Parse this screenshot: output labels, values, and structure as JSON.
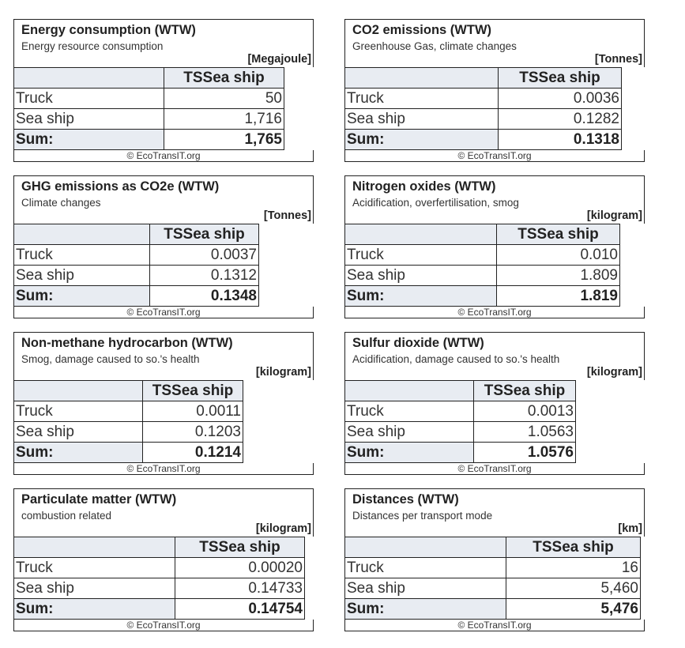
{
  "credit": "© EcoTransIT.org",
  "column_header": "TSSea ship",
  "panels": [
    {
      "title": "Energy consumption (WTW)",
      "subtitle": "Energy resource consumption",
      "unit": "[Megajoule]",
      "rows": [
        {
          "label": "Truck",
          "value": "50"
        },
        {
          "label": "Sea ship",
          "value": "1,716"
        }
      ],
      "sum": {
        "label": "Sum:",
        "value": "1,765"
      }
    },
    {
      "title": "CO2 emissions (WTW)",
      "subtitle": "Greenhouse Gas, climate changes",
      "unit": "[Tonnes]",
      "rows": [
        {
          "label": "Truck",
          "value": "0.0036"
        },
        {
          "label": "Sea ship",
          "value": "0.1282"
        }
      ],
      "sum": {
        "label": "Sum:",
        "value": "0.1318"
      }
    },
    {
      "title": "GHG emissions as CO2e (WTW)",
      "subtitle": "Climate changes",
      "unit": "[Tonnes]",
      "rows": [
        {
          "label": "Truck",
          "value": "0.0037"
        },
        {
          "label": "Sea ship",
          "value": "0.1312"
        }
      ],
      "sum": {
        "label": "Sum:",
        "value": "0.1348"
      }
    },
    {
      "title": "Nitrogen oxides (WTW)",
      "subtitle": "Acidification, overfertilisation, smog",
      "unit": "[kilogram]",
      "rows": [
        {
          "label": "Truck",
          "value": "0.010"
        },
        {
          "label": "Sea ship",
          "value": "1.809"
        }
      ],
      "sum": {
        "label": "Sum:",
        "value": "1.819"
      }
    },
    {
      "title": "Non-methane hydrocarbon (WTW)",
      "subtitle": "Smog, damage caused to so.'s health",
      "unit": "[kilogram]",
      "rows": [
        {
          "label": "Truck",
          "value": "0.0011"
        },
        {
          "label": "Sea ship",
          "value": "0.1203"
        }
      ],
      "sum": {
        "label": "Sum:",
        "value": "0.1214"
      }
    },
    {
      "title": "Sulfur dioxide (WTW)",
      "subtitle": "Acidification, damage caused to so.'s health",
      "unit": "[kilogram]",
      "rows": [
        {
          "label": "Truck",
          "value": "0.0013"
        },
        {
          "label": "Sea ship",
          "value": "1.0563"
        }
      ],
      "sum": {
        "label": "Sum:",
        "value": "1.0576"
      }
    },
    {
      "title": "Particulate matter (WTW)",
      "subtitle": "combustion related",
      "unit": "[kilogram]",
      "rows": [
        {
          "label": "Truck",
          "value": "0.00020"
        },
        {
          "label": "Sea ship",
          "value": "0.14733"
        }
      ],
      "sum": {
        "label": "Sum:",
        "value": "0.14754"
      }
    },
    {
      "title": "Distances (WTW)",
      "subtitle": "Distances per transport mode",
      "unit": "[km]",
      "rows": [
        {
          "label": "Truck",
          "value": "16"
        },
        {
          "label": "Sea ship",
          "value": "5,460"
        }
      ],
      "sum": {
        "label": "Sum:",
        "value": "5,476"
      }
    }
  ]
}
